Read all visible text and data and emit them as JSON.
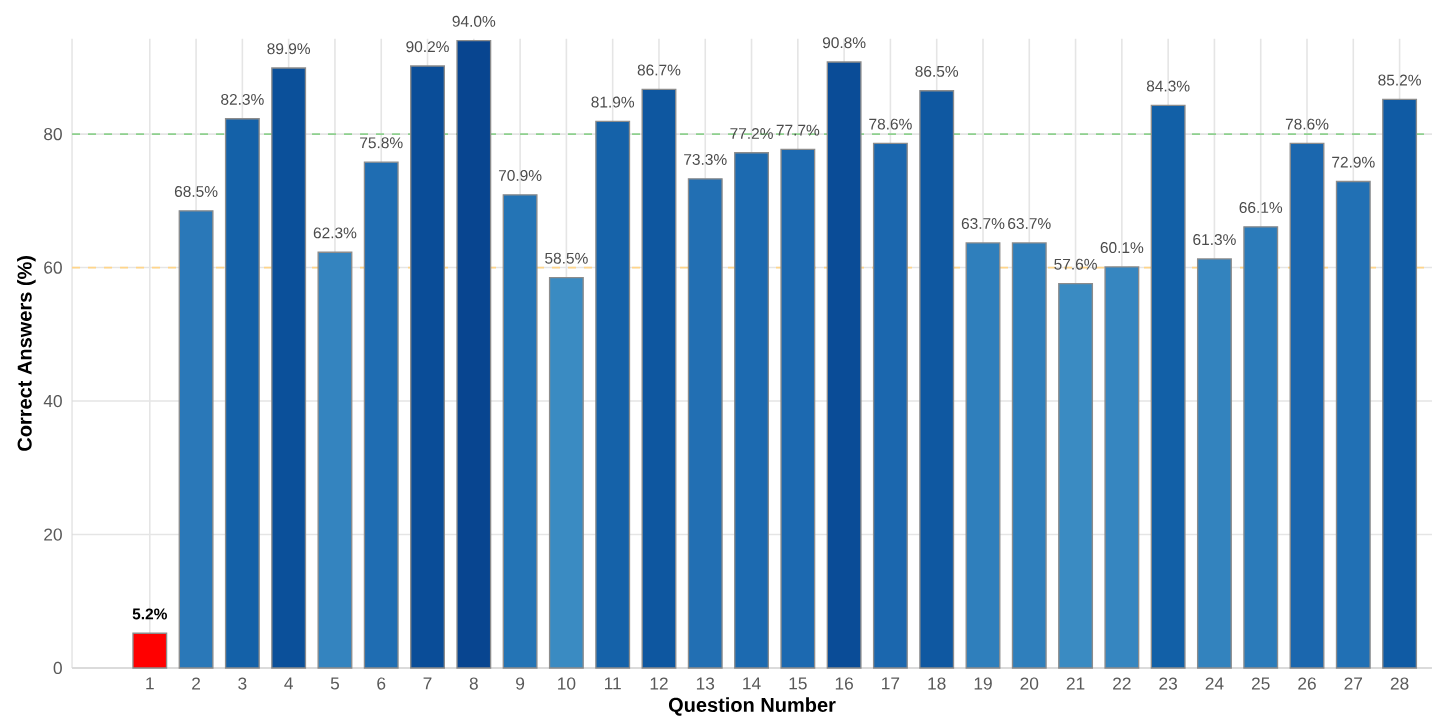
{
  "chart_data": {
    "type": "bar",
    "xlabel": "Question Number",
    "ylabel": "Correct Answers (%)",
    "categories": [
      "1",
      "2",
      "3",
      "4",
      "5",
      "6",
      "7",
      "8",
      "9",
      "10",
      "11",
      "12",
      "13",
      "14",
      "15",
      "16",
      "17",
      "18",
      "19",
      "20",
      "21",
      "22",
      "23",
      "24",
      "25",
      "26",
      "27",
      "28"
    ],
    "values": [
      5.2,
      68.5,
      82.3,
      89.9,
      62.3,
      75.8,
      90.2,
      94.0,
      70.9,
      58.5,
      81.9,
      86.7,
      73.3,
      77.2,
      77.7,
      90.8,
      78.6,
      86.5,
      63.7,
      63.7,
      57.6,
      60.1,
      84.3,
      61.3,
      66.1,
      78.6,
      72.9,
      85.2
    ],
    "colors": [
      "#ff0000",
      "#2a78b8",
      "#1461a8",
      "#0b509a",
      "#3484bf",
      "#1f6db2",
      "#0a4d98",
      "#084590",
      "#2474b5",
      "#3a8bc2",
      "#1562a9",
      "#0e57a0",
      "#226fb3",
      "#1c6ab0",
      "#1c69b0",
      "#0a4c97",
      "#1b67ae",
      "#0f58a1",
      "#2f7fbc",
      "#2f7fbc",
      "#3a8bc2",
      "#3686c0",
      "#1260a7",
      "#3383be",
      "#2b7bba",
      "#1b67ae",
      "#2170b4",
      "#105ba4"
    ],
    "value_labels": [
      "5.2%",
      "68.5%",
      "82.3%",
      "89.9%",
      "62.3%",
      "75.8%",
      "90.2%",
      "94.0%",
      "70.9%",
      "58.5%",
      "81.9%",
      "86.7%",
      "73.3%",
      "77.2%",
      "77.7%",
      "90.8%",
      "78.6%",
      "86.5%",
      "63.7%",
      "63.7%",
      "57.6%",
      "60.1%",
      "84.3%",
      "61.3%",
      "66.1%",
      "78.6%",
      "72.9%",
      "85.2%"
    ],
    "ylim": [
      0,
      94.3
    ],
    "yticks": [
      0,
      20,
      40,
      60,
      80
    ],
    "ref_lines": [
      {
        "axis": "y",
        "value": 80,
        "color": "#8fd18f",
        "line_style": "dashed"
      },
      {
        "axis": "y",
        "value": 60,
        "color": "#ffd58a",
        "line_style": "dashed"
      }
    ],
    "grid": true
  }
}
